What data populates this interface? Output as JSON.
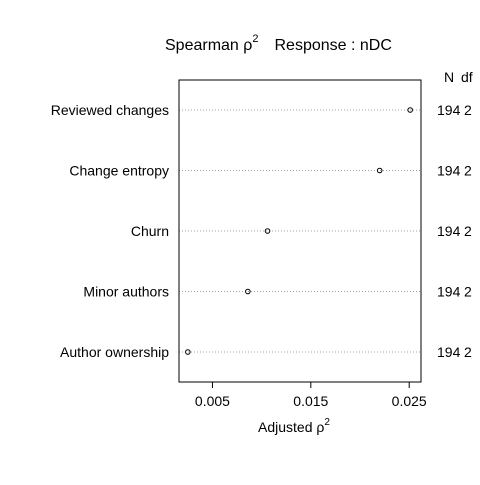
{
  "chart_data": {
    "type": "scatter",
    "title_main": "Spearman ",
    "title_rho": "ρ",
    "title_sup": "2",
    "title_response": "Response : nDC",
    "xlabel": "Adjusted ",
    "xlabel_rho": "ρ",
    "xlabel_sup": "2",
    "xlim": [
      0.0016,
      0.0262
    ],
    "xticks": [
      0.005,
      0.015,
      0.025
    ],
    "xtick_labels": [
      "0.005",
      "0.015",
      "0.025"
    ],
    "grid": "dotted horizontal",
    "stats_headers": [
      "N",
      "df"
    ],
    "rows": [
      {
        "label": "Reviewed changes",
        "value": 0.0251,
        "N": "194",
        "df": "2"
      },
      {
        "label": "Change entropy",
        "value": 0.022,
        "N": "194",
        "df": "2"
      },
      {
        "label": "Churn",
        "value": 0.0106,
        "N": "194",
        "df": "2"
      },
      {
        "label": "Minor authors",
        "value": 0.0086,
        "N": "194",
        "df": "2"
      },
      {
        "label": "Author ownership",
        "value": 0.0025,
        "N": "194",
        "df": "2"
      }
    ]
  }
}
